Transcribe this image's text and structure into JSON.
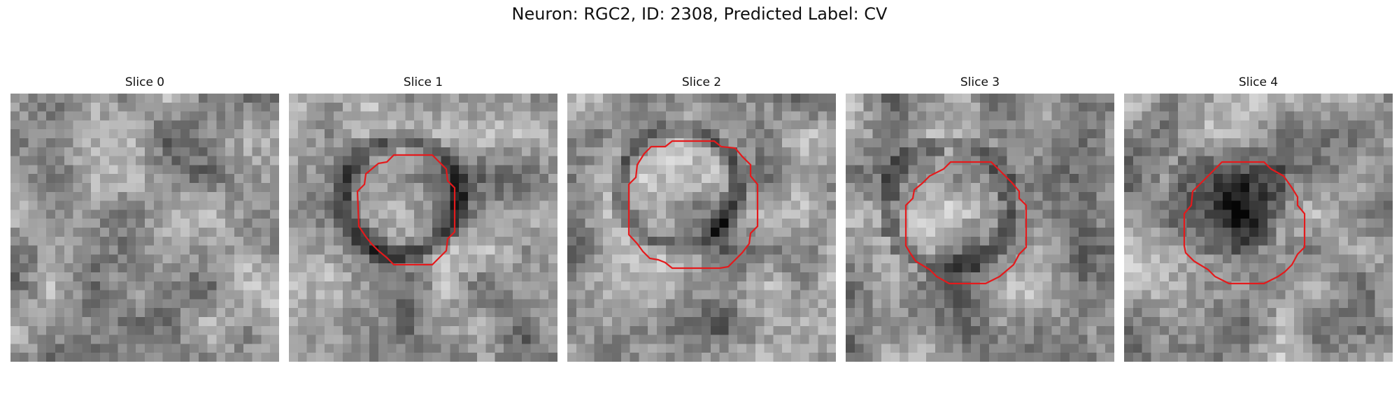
{
  "figure": {
    "title": "Neuron: RGC2, ID: 2308, Predicted Label: CV"
  },
  "colors": {
    "contour": "#e41a1c",
    "background": "#ffffff"
  },
  "slices": [
    {
      "label": "Slice 0",
      "has_contour": false,
      "blob": null
    },
    {
      "label": "Slice 1",
      "has_contour": true,
      "blob": {
        "type": "ring",
        "cx": 12,
        "cy": 11
      }
    },
    {
      "label": "Slice 2",
      "has_contour": true,
      "blob": {
        "type": "ring",
        "cx": 12,
        "cy": 10
      }
    },
    {
      "label": "Slice 3",
      "has_contour": true,
      "blob": {
        "type": "bright",
        "cx": 11,
        "cy": 12
      }
    },
    {
      "label": "Slice 4",
      "has_contour": true,
      "blob": {
        "type": "dark",
        "cx": 11,
        "cy": 11
      }
    }
  ]
}
